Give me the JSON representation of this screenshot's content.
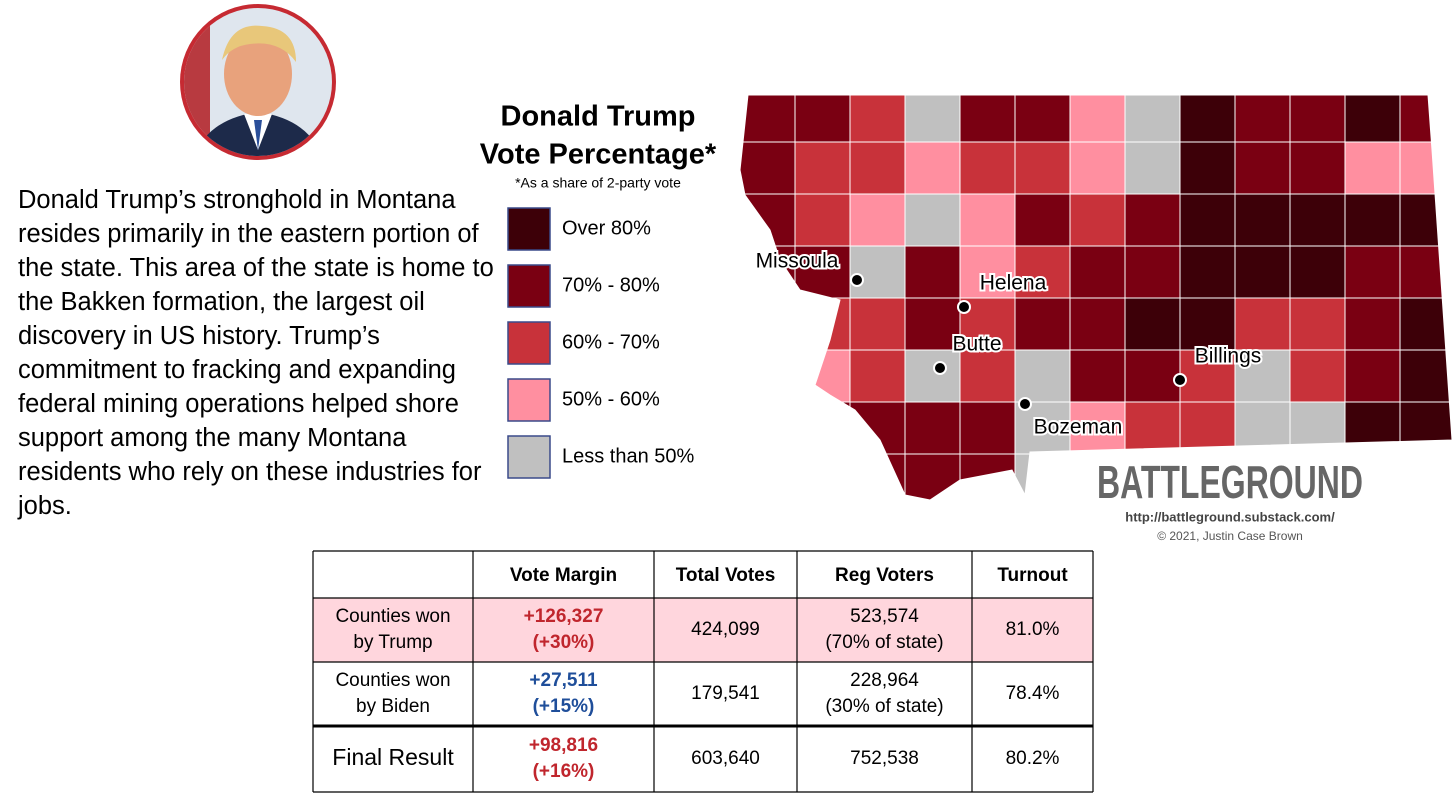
{
  "paragraph": "Donald Trump’s stronghold in Montana resides primarily in the eastern portion of the state. This area of the state is home to the Bakken formation, the largest oil discovery in US history. Trump’s commitment to fracking and expanding federal mining operations helped shore support among the many Montana residents who rely on these industries for jobs.",
  "legend": {
    "title": [
      "Donald Trump",
      "Vote Percentage*"
    ],
    "subtitle": "*As a share of 2-party vote",
    "items": [
      {
        "label": "Over 80%",
        "color": "#3d0008"
      },
      {
        "label": "70% - 80%",
        "color": "#7a0012"
      },
      {
        "label": "60% - 70%",
        "color": "#c8323a"
      },
      {
        "label": "50% - 60%",
        "color": "#ff8fa0"
      },
      {
        "label": "Less than 50%",
        "color": "#c0c0c0"
      }
    ]
  },
  "cities": [
    "Missoula",
    "Helena",
    "Butte",
    "Bozeman",
    "Billings"
  ],
  "branding": {
    "logo": "BATTLEGROUND",
    "url": "http://battleground.substack.com/",
    "copyright": "© 2021, Justin Case Brown"
  },
  "table": {
    "headers": [
      "Vote Margin",
      "Total Votes",
      "Reg Voters",
      "Turnout"
    ],
    "rows": [
      [
        [
          "Counties won",
          "by Trump"
        ],
        [
          "+126,327",
          "(+30%)"
        ],
        [
          "424,099"
        ],
        [
          "523,574",
          "(70% of state)"
        ],
        [
          "81.0%"
        ]
      ],
      [
        [
          "Counties won",
          "by Biden"
        ],
        [
          "+27,511",
          "(+15%)"
        ],
        [
          "179,541"
        ],
        [
          "228,964",
          "(30% of state)"
        ],
        [
          "78.4%"
        ]
      ],
      [
        [
          "Final Result"
        ],
        [
          "+98,816",
          "(+16%)"
        ],
        [
          "603,640"
        ],
        [
          "752,538"
        ],
        [
          "80.2%"
        ]
      ]
    ]
  }
}
